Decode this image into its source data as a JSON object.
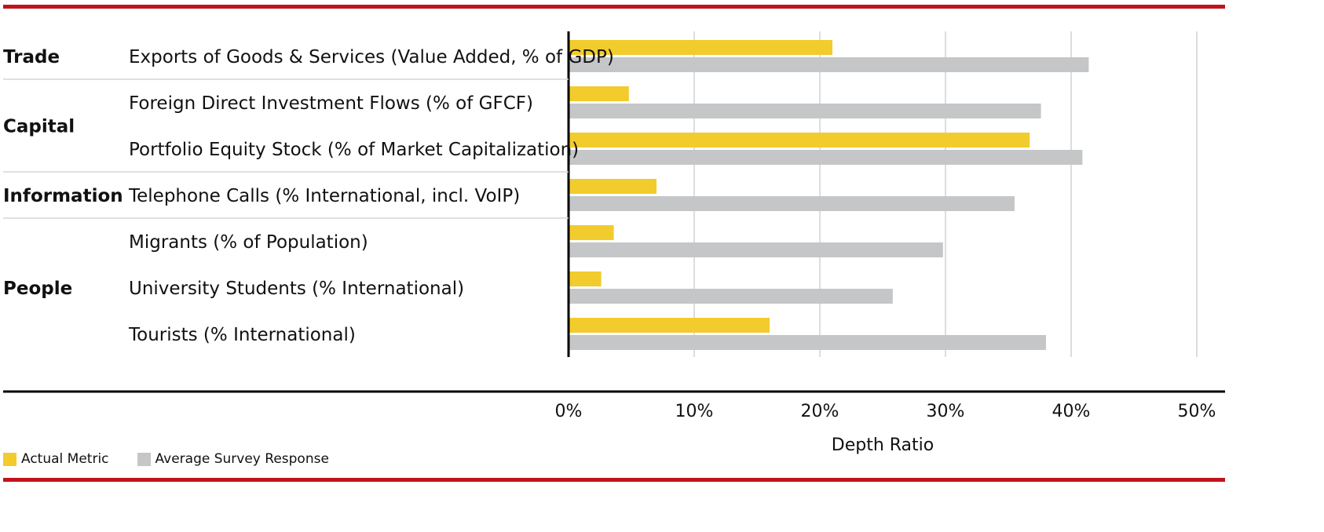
{
  "chart_data": {
    "type": "bar",
    "orientation": "horizontal",
    "xlabel": "Depth Ratio",
    "xlim": [
      0,
      50
    ],
    "x_ticks": [
      "0%",
      "10%",
      "20%",
      "30%",
      "40%",
      "50%"
    ],
    "grid": true,
    "legend_position": "bottom-left",
    "groups": [
      {
        "name": "Trade",
        "categories": [
          "Exports of Goods & Services (Value Added, % of GDP)"
        ]
      },
      {
        "name": "Capital",
        "categories": [
          "Foreign Direct Investment Flows (% of GFCF)",
          "Portfolio Equity Stock (% of Market Capitalization)"
        ]
      },
      {
        "name": "Information",
        "categories": [
          "Telephone Calls (% International, incl. VoIP)"
        ]
      },
      {
        "name": "People",
        "categories": [
          "Migrants (% of Population)",
          "University Students (% International)",
          "Tourists (% International)"
        ]
      }
    ],
    "categories": [
      "Exports of Goods & Services (Value Added, % of GDP)",
      "Foreign Direct Investment Flows (% of GFCF)",
      "Portfolio Equity Stock (% of Market Capitalization)",
      "Telephone Calls (% International, incl. VoIP)",
      "Migrants (% of Population)",
      "University Students (% International)",
      "Tourists (% International)"
    ],
    "series": [
      {
        "name": "Actual Metric",
        "color": "#f2cb2d",
        "values": [
          21,
          4.8,
          36.7,
          7,
          3.6,
          2.6,
          16
        ]
      },
      {
        "name": "Average Survey Response",
        "color": "#c4c6c7",
        "values": [
          41.4,
          37.6,
          40.9,
          35.5,
          29.8,
          25.8,
          38
        ]
      }
    ]
  },
  "colors": {
    "accent_rule": "#c0141b",
    "actual": "#f2cb2d",
    "survey": "#c4c6c7",
    "grid": "#dddddd",
    "axis": "#000000"
  }
}
